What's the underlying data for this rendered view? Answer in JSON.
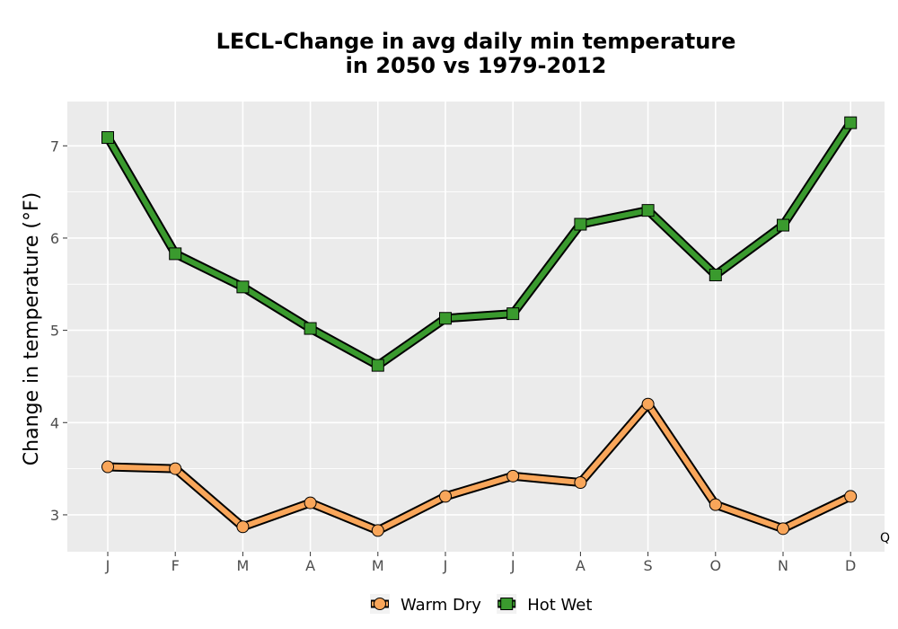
{
  "chart_data": {
    "type": "line",
    "title_lines": [
      "LECL-Change in avg daily min temperature",
      "in 2050 vs 1979-2012"
    ],
    "ylabel": "Change in temperature (°F)",
    "xlabel": "",
    "categories": [
      "J",
      "F",
      "M",
      "A",
      "M",
      "J",
      "J",
      "A",
      "S",
      "O",
      "N",
      "D"
    ],
    "ylim": [
      2.6,
      7.48
    ],
    "yticks": [
      3,
      4,
      5,
      6,
      7
    ],
    "grid": true,
    "legend_position": "bottom",
    "corner_label": "Q",
    "series": [
      {
        "name": "Warm Dry",
        "marker": "circle",
        "color": "#f9a65a",
        "values": [
          3.52,
          3.5,
          2.87,
          3.13,
          2.83,
          3.2,
          3.42,
          3.35,
          4.2,
          3.11,
          2.85,
          3.2
        ]
      },
      {
        "name": "Hot Wet",
        "marker": "square",
        "color": "#3a9a2e",
        "values": [
          7.09,
          5.83,
          5.47,
          5.02,
          4.62,
          5.13,
          5.18,
          6.15,
          6.3,
          5.6,
          6.14,
          7.25
        ]
      }
    ]
  }
}
